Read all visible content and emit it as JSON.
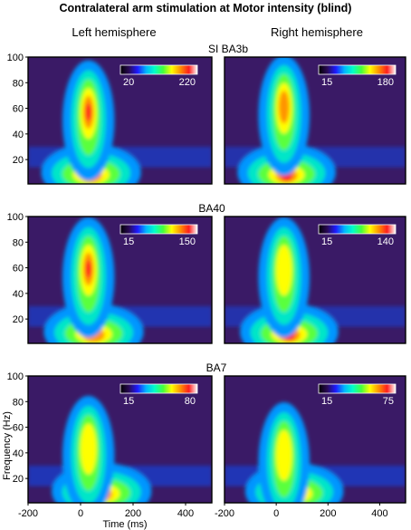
{
  "figure": {
    "title": "Contralateral arm stimulation at Motor intensity (blind)",
    "columns": [
      "Left hemisphere",
      "Right hemisphere"
    ],
    "y_axis_label": "Frequency (Hz)",
    "x_axis_label": "Time (ms)"
  },
  "chart_data": {
    "type": "heatmap",
    "xlim": [
      -200,
      500
    ],
    "ylim": [
      1,
      100
    ],
    "x_ticks": [
      -200,
      0,
      200,
      400
    ],
    "y_ticks": [
      20,
      40,
      60,
      80,
      100
    ],
    "colormap": [
      "#000000",
      "#2a0a55",
      "#1e1aff",
      "#00b4ff",
      "#00ffc8",
      "#46ff3c",
      "#ffff00",
      "#ff9400",
      "#ff1e1e",
      "#ffffff"
    ],
    "panels": [
      {
        "row_label": "SI BA3b",
        "column": "Left hemisphere",
        "colorbar_min": "20",
        "colorbar_max": "220",
        "gamma_peak_hz": 58,
        "gamma_peak_ms": 30,
        "low_freq_peak_ms": 40
      },
      {
        "row_label": "",
        "column": "Right hemisphere",
        "colorbar_min": "15",
        "colorbar_max": "180",
        "gamma_peak_hz": 62,
        "gamma_peak_ms": 30,
        "low_freq_peak_ms": 40
      },
      {
        "row_label": "BA40",
        "column": "Left hemisphere",
        "colorbar_min": "15",
        "colorbar_max": "150",
        "gamma_peak_hz": 60,
        "gamma_peak_ms": 30,
        "low_freq_peak_ms": 50
      },
      {
        "row_label": "",
        "column": "Right hemisphere",
        "colorbar_min": "15",
        "colorbar_max": "140",
        "gamma_peak_hz": 60,
        "gamma_peak_ms": 30,
        "low_freq_peak_ms": 50
      },
      {
        "row_label": "BA7",
        "column": "Left hemisphere",
        "colorbar_min": "15",
        "colorbar_max": "80",
        "gamma_peak_hz": 45,
        "gamma_peak_ms": 30,
        "low_freq_peak_ms": 80
      },
      {
        "row_label": "",
        "column": "Right hemisphere",
        "colorbar_min": "15",
        "colorbar_max": "75",
        "gamma_peak_hz": 40,
        "gamma_peak_ms": 30,
        "low_freq_peak_ms": 70
      }
    ]
  }
}
